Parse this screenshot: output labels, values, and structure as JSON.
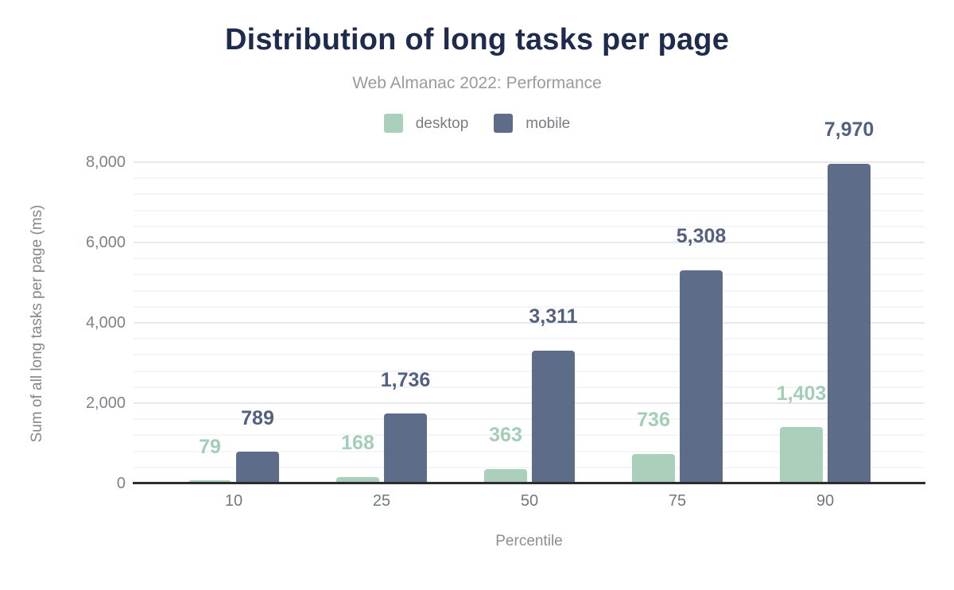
{
  "chart_data": {
    "type": "bar",
    "title": "Distribution of long tasks per page",
    "subtitle": "Web Almanac 2022: Performance",
    "xlabel": "Percentile",
    "ylabel": "Sum of all long tasks per page (ms)",
    "categories": [
      "10",
      "25",
      "50",
      "75",
      "90"
    ],
    "series": [
      {
        "name": "desktop",
        "color": "#aacfbb",
        "label_color": "#a3cdb6",
        "values": [
          79,
          168,
          363,
          736,
          1403
        ]
      },
      {
        "name": "mobile",
        "color": "#5d6c88",
        "label_color": "#53617f",
        "values": [
          789,
          1736,
          3311,
          5308,
          7970
        ]
      }
    ],
    "value_labels": {
      "desktop": [
        "79",
        "168",
        "363",
        "736",
        "1,403"
      ],
      "mobile": [
        "789",
        "1,736",
        "3,311",
        "5,308",
        "7,970"
      ]
    },
    "ylim": [
      0,
      8000
    ],
    "yticks": [
      0,
      2000,
      4000,
      6000,
      8000
    ],
    "ytick_labels": [
      "0",
      "2,000",
      "4,000",
      "6,000",
      "8,000"
    ],
    "minor_grid_step": 400,
    "grid": true,
    "legend_position": "top",
    "colors": {
      "title": "#1f2b4d",
      "subtitle": "#999b9e",
      "axis_line": "#2d2d2f",
      "tick_text": "#7d828c",
      "major_grid": "#e9e9eb",
      "minor_grid": "#f5f5f6"
    }
  }
}
